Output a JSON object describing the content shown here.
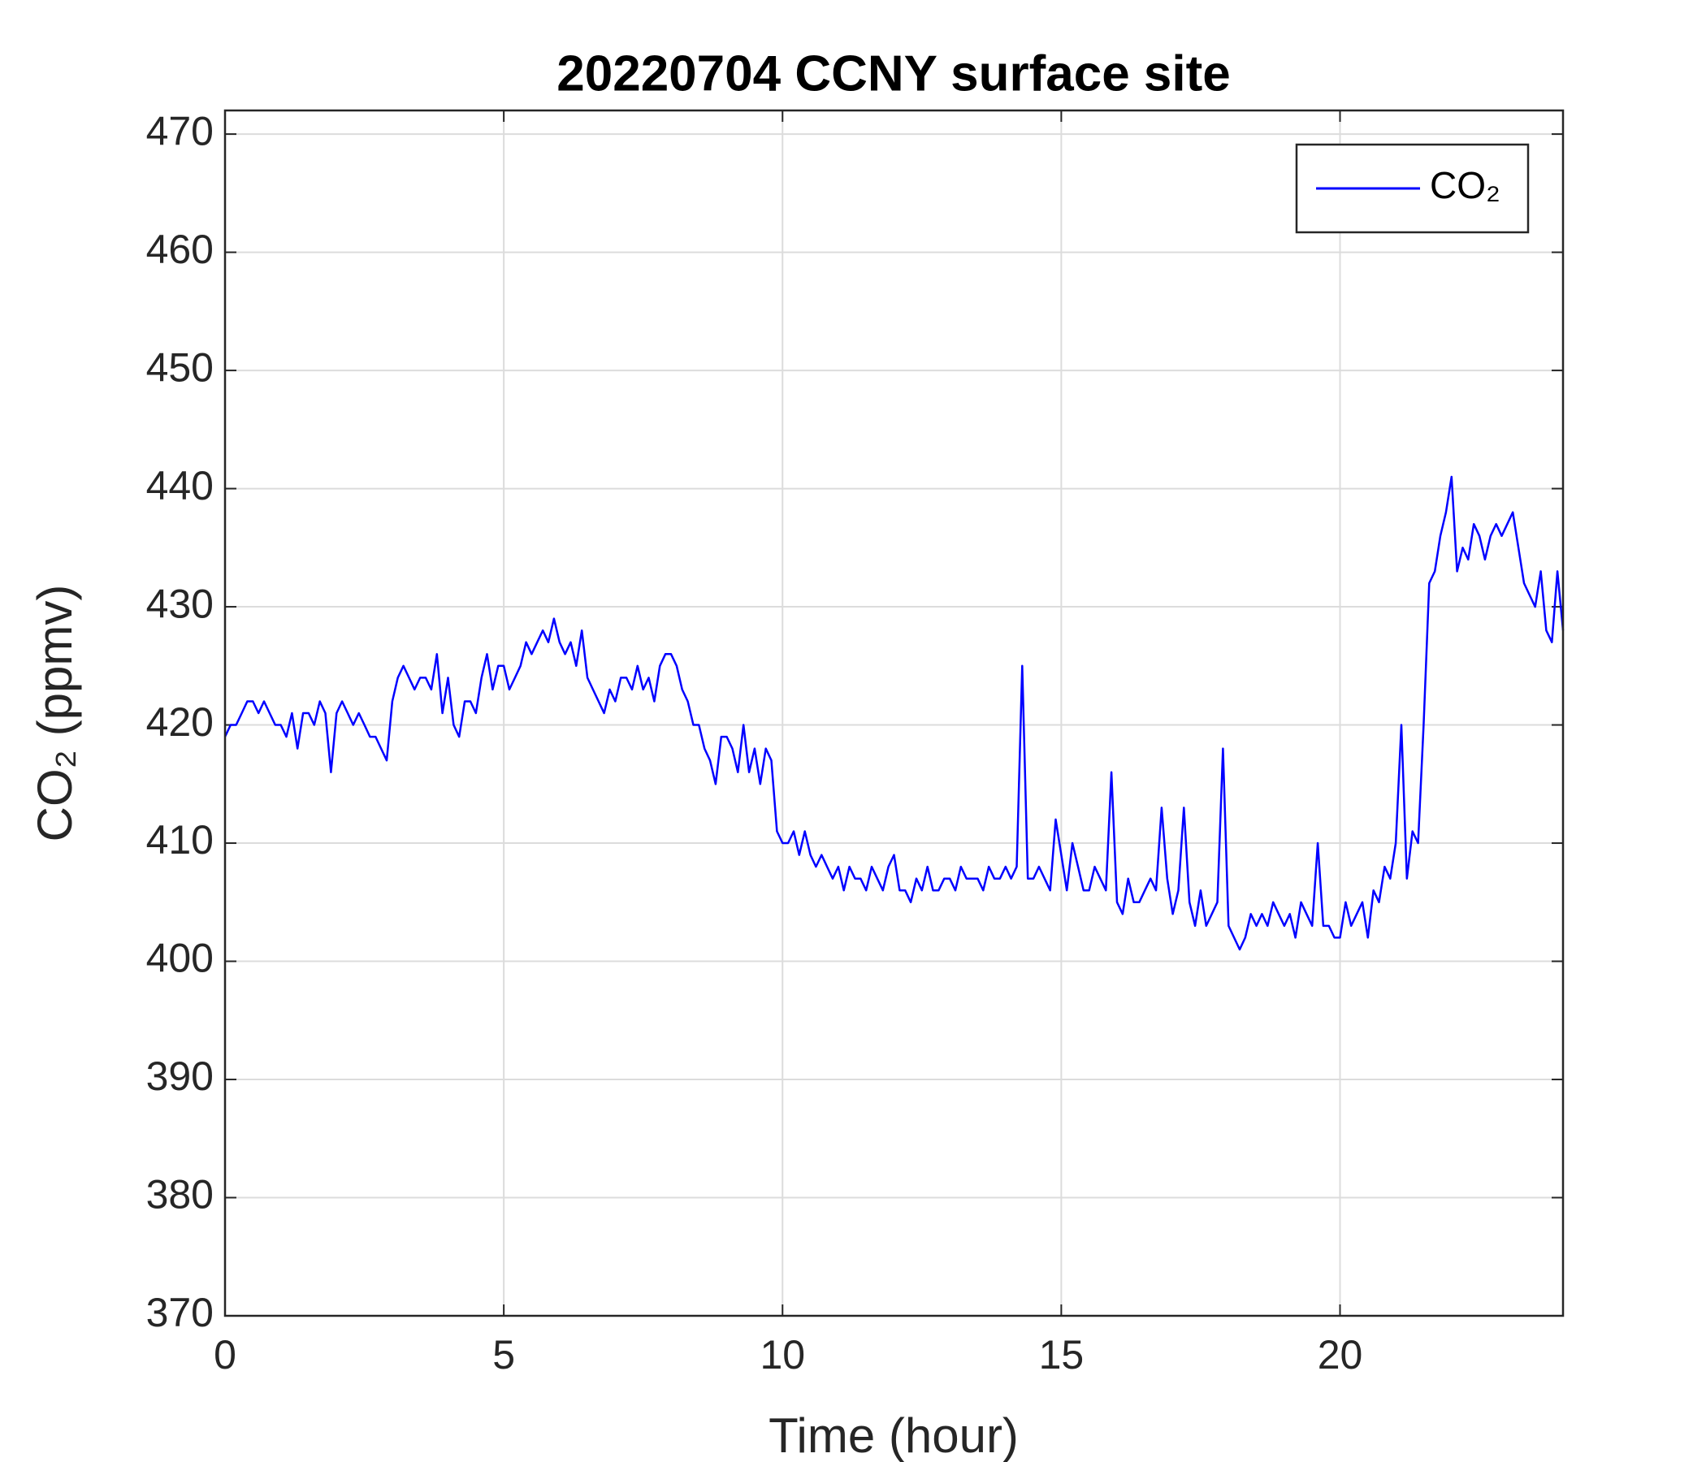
{
  "chart_data": {
    "type": "line",
    "title": "20220704 CCNY surface site",
    "x_label": "Time (hour)",
    "y_label": "CO₂ (ppmv)",
    "xlim": [
      0,
      24
    ],
    "ylim": [
      370,
      472
    ],
    "xticks": [
      0,
      5,
      10,
      15,
      20
    ],
    "yticks": [
      370,
      380,
      390,
      400,
      410,
      420,
      430,
      440,
      450,
      460,
      470
    ],
    "grid": true,
    "legend": "upper right",
    "x": [
      0,
      0.1,
      0.2,
      0.3,
      0.4,
      0.5,
      0.6,
      0.7,
      0.8,
      0.9,
      1,
      1.1,
      1.2,
      1.3,
      1.4,
      1.5,
      1.6,
      1.7,
      1.8,
      1.9,
      2,
      2.1,
      2.2,
      2.3,
      2.4,
      2.5,
      2.6,
      2.7,
      2.8,
      2.9,
      3,
      3.1,
      3.2,
      3.3,
      3.4,
      3.5,
      3.6,
      3.7,
      3.8,
      3.9,
      4,
      4.1,
      4.2,
      4.3,
      4.4,
      4.5,
      4.6,
      4.7,
      4.8,
      4.9,
      5,
      5.1,
      5.2,
      5.3,
      5.4,
      5.5,
      5.6,
      5.7,
      5.8,
      5.9,
      6,
      6.1,
      6.2,
      6.3,
      6.4,
      6.5,
      6.6,
      6.7,
      6.8,
      6.9,
      7,
      7.1,
      7.2,
      7.3,
      7.4,
      7.5,
      7.6,
      7.7,
      7.8,
      7.9,
      8,
      8.1,
      8.2,
      8.3,
      8.4,
      8.5,
      8.6,
      8.7,
      8.8,
      8.9,
      9,
      9.1,
      9.2,
      9.3,
      9.4,
      9.5,
      9.6,
      9.7,
      9.8,
      9.9,
      10,
      10.1,
      10.2,
      10.3,
      10.4,
      10.5,
      10.6,
      10.7,
      10.8,
      10.9,
      11,
      11.1,
      11.2,
      11.3,
      11.4,
      11.5,
      11.6,
      11.7,
      11.8,
      11.9,
      12,
      12.1,
      12.2,
      12.3,
      12.4,
      12.5,
      12.6,
      12.7,
      12.8,
      12.9,
      13,
      13.1,
      13.2,
      13.3,
      13.4,
      13.5,
      13.6,
      13.7,
      13.8,
      13.9,
      14,
      14.1,
      14.2,
      14.3,
      14.4,
      14.5,
      14.6,
      14.7,
      14.8,
      14.9,
      15,
      15.1,
      15.2,
      15.3,
      15.4,
      15.5,
      15.6,
      15.7,
      15.8,
      15.9,
      16,
      16.1,
      16.2,
      16.3,
      16.4,
      16.5,
      16.6,
      16.7,
      16.8,
      16.9,
      17,
      17.1,
      17.2,
      17.3,
      17.4,
      17.5,
      17.6,
      17.7,
      17.8,
      17.9,
      18,
      18.1,
      18.2,
      18.3,
      18.4,
      18.5,
      18.6,
      18.7,
      18.8,
      18.9,
      19,
      19.1,
      19.2,
      19.3,
      19.4,
      19.5,
      19.6,
      19.7,
      19.8,
      19.9,
      20,
      20.1,
      20.2,
      20.3,
      20.4,
      20.5,
      20.6,
      20.7,
      20.8,
      20.9,
      21,
      21.1,
      21.2,
      21.3,
      21.4,
      21.5,
      21.6,
      21.7,
      21.8,
      21.9,
      22,
      22.1,
      22.2,
      22.3,
      22.4,
      22.5,
      22.6,
      22.7,
      22.8,
      22.9,
      23,
      23.1,
      23.2,
      23.3,
      23.4,
      23.5,
      23.6,
      23.7,
      23.8,
      23.9,
      24
    ],
    "series": [
      {
        "name": "CO₂",
        "color": "#0000ff",
        "values": [
          419,
          420,
          420,
          421,
          422,
          422,
          421,
          422,
          421,
          420,
          420,
          419,
          421,
          418,
          421,
          421,
          420,
          422,
          421,
          416,
          421,
          422,
          421,
          420,
          421,
          420,
          419,
          419,
          418,
          417,
          422,
          424,
          425,
          424,
          423,
          424,
          424,
          423,
          426,
          421,
          424,
          420,
          419,
          422,
          422,
          421,
          424,
          426,
          423,
          425,
          425,
          423,
          424,
          425,
          427,
          426,
          427,
          428,
          427,
          429,
          427,
          426,
          427,
          425,
          428,
          424,
          423,
          422,
          421,
          423,
          422,
          424,
          424,
          423,
          425,
          423,
          424,
          422,
          425,
          426,
          426,
          425,
          423,
          422,
          420,
          420,
          418,
          417,
          415,
          419,
          419,
          418,
          416,
          420,
          416,
          418,
          415,
          418,
          417,
          411,
          410,
          410,
          411,
          409,
          411,
          409,
          408,
          409,
          408,
          407,
          408,
          406,
          408,
          407,
          407,
          406,
          408,
          407,
          406,
          408,
          409,
          406,
          406,
          405,
          407,
          406,
          408,
          406,
          406,
          407,
          407,
          406,
          408,
          407,
          407,
          407,
          406,
          408,
          407,
          407,
          408,
          407,
          408,
          425,
          407,
          407,
          408,
          407,
          406,
          412,
          409,
          406,
          410,
          408,
          406,
          406,
          408,
          407,
          406,
          416,
          405,
          404,
          407,
          405,
          405,
          406,
          407,
          406,
          413,
          407,
          404,
          406,
          413,
          405,
          403,
          406,
          403,
          404,
          405,
          418,
          403,
          402,
          401,
          402,
          404,
          403,
          404,
          403,
          405,
          404,
          403,
          404,
          402,
          405,
          404,
          403,
          410,
          403,
          403,
          402,
          402,
          405,
          403,
          404,
          405,
          402,
          406,
          405,
          408,
          407,
          410,
          420,
          407,
          411,
          410,
          420,
          432,
          433,
          436,
          438,
          441,
          433,
          435,
          434,
          437,
          436,
          434,
          436,
          437,
          436,
          437,
          438,
          435,
          432,
          431,
          430,
          433,
          428,
          427,
          433,
          428
        ]
      }
    ]
  }
}
